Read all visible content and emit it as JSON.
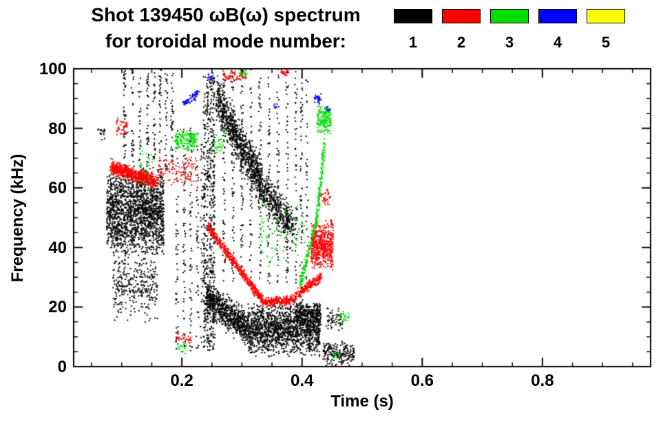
{
  "title": {
    "line1": "Shot 139450 ωB(ω) spectrum",
    "line2": "for toroidal mode number:"
  },
  "legend": {
    "modes": [
      {
        "label": "1",
        "color": "#000000"
      },
      {
        "label": "2",
        "color": "#ff0000"
      },
      {
        "label": "3",
        "color": "#00dd00"
      },
      {
        "label": "4",
        "color": "#0000ff"
      },
      {
        "label": "5",
        "color": "#ffff00"
      }
    ]
  },
  "axes": {
    "xlabel": "Time (s)",
    "ylabel": "Frequency (kHz)",
    "xticks": [
      "0.2",
      "0.4",
      "0.6",
      "0.8"
    ],
    "yticks": [
      "0",
      "20",
      "40",
      "60",
      "80",
      "100"
    ]
  },
  "chart_data": {
    "type": "scatter",
    "subtype": "mode-spectrogram",
    "title": "Shot 139450 ωB(ω) spectrum",
    "subtitle": "for toroidal mode number:",
    "xlabel": "Time (s)",
    "ylabel": "Frequency (kHz)",
    "xlim": [
      0.02,
      0.98
    ],
    "ylim": [
      0,
      100
    ],
    "xticks": [
      0.2,
      0.4,
      0.6,
      0.8
    ],
    "yticks": [
      0,
      20,
      40,
      60,
      80,
      100
    ],
    "x_minor_step": 0.05,
    "y_minor_step": 5,
    "grid": false,
    "legend_position": "top-right",
    "modes": [
      {
        "mode": 1,
        "color": "#000000"
      },
      {
        "mode": 2,
        "color": "#ff0000"
      },
      {
        "mode": 3,
        "color": "#00dd00"
      },
      {
        "mode": 4,
        "color": "#0000ff"
      },
      {
        "mode": 5,
        "color": "#ffff00"
      }
    ],
    "clusters": [
      {
        "mode": 1,
        "kind": "blob",
        "t": [
          0.075,
          0.17
        ],
        "f": [
          36,
          68
        ],
        "n": 1800
      },
      {
        "mode": 1,
        "kind": "blob",
        "t": [
          0.085,
          0.16
        ],
        "f": [
          14,
          40
        ],
        "n": 320
      },
      {
        "mode": 1,
        "kind": "blob",
        "t": [
          0.06,
          0.072
        ],
        "f": [
          76,
          82
        ],
        "n": 18
      },
      {
        "mode": 1,
        "kind": "streaks",
        "tpos": [
          0.105,
          0.118,
          0.13,
          0.143,
          0.154,
          0.164,
          0.174,
          0.184
        ],
        "f": [
          66,
          100
        ],
        "n": 280
      },
      {
        "mode": 1,
        "kind": "streaks",
        "tpos": [
          0.192,
          0.204,
          0.215,
          0.226,
          0.233
        ],
        "f": [
          5,
          80
        ],
        "n": 240
      },
      {
        "mode": 1,
        "kind": "streaks",
        "tpos": [
          0.238,
          0.243,
          0.248,
          0.253
        ],
        "f": [
          5,
          98
        ],
        "n": 620
      },
      {
        "mode": 1,
        "kind": "track",
        "t": [
          0.258,
          0.335
        ],
        "f": [
          90,
          60
        ],
        "spread": 7,
        "n": 950
      },
      {
        "mode": 1,
        "kind": "track",
        "t": [
          0.335,
          0.385
        ],
        "f": [
          60,
          46
        ],
        "spread": 6,
        "n": 420
      },
      {
        "mode": 1,
        "kind": "streaks",
        "tpos": [
          0.27,
          0.285,
          0.3,
          0.315,
          0.33,
          0.345,
          0.36,
          0.375,
          0.39
        ],
        "f": [
          28,
          100
        ],
        "n": 480
      },
      {
        "mode": 1,
        "kind": "track",
        "t": [
          0.24,
          0.31
        ],
        "f": [
          23,
          13
        ],
        "spread": 5,
        "n": 750
      },
      {
        "mode": 1,
        "kind": "blob",
        "t": [
          0.31,
          0.43
        ],
        "f": [
          3,
          22
        ],
        "n": 1500
      },
      {
        "mode": 1,
        "kind": "blob",
        "t": [
          0.39,
          0.432
        ],
        "f": [
          13,
          22
        ],
        "n": 260
      },
      {
        "mode": 1,
        "kind": "streaks",
        "tpos": [
          0.399,
          0.408
        ],
        "f": [
          10,
          100
        ],
        "n": 110
      },
      {
        "mode": 1,
        "kind": "blob",
        "t": [
          0.435,
          0.487
        ],
        "f": [
          0,
          9
        ],
        "n": 200
      },
      {
        "mode": 1,
        "kind": "blob",
        "t": [
          0.44,
          0.468
        ],
        "f": [
          12,
          20
        ],
        "n": 60
      },
      {
        "mode": 2,
        "kind": "track",
        "t": [
          0.082,
          0.158
        ],
        "f": [
          67,
          62
        ],
        "spread": 2.2,
        "n": 620
      },
      {
        "mode": 2,
        "kind": "blob",
        "t": [
          0.16,
          0.226
        ],
        "f": [
          60,
          71
        ],
        "n": 110
      },
      {
        "mode": 2,
        "kind": "blob",
        "t": [
          0.09,
          0.112
        ],
        "f": [
          77,
          84
        ],
        "n": 40
      },
      {
        "mode": 2,
        "kind": "track",
        "t": [
          0.243,
          0.335
        ],
        "f": [
          47,
          22
        ],
        "spread": 1.6,
        "n": 500
      },
      {
        "mode": 2,
        "kind": "track",
        "t": [
          0.335,
          0.388
        ],
        "f": [
          21.5,
          22.5
        ],
        "spread": 1.4,
        "n": 260
      },
      {
        "mode": 2,
        "kind": "track",
        "t": [
          0.388,
          0.432
        ],
        "f": [
          23.5,
          30
        ],
        "spread": 1.6,
        "n": 210
      },
      {
        "mode": 2,
        "kind": "blob",
        "t": [
          0.415,
          0.452
        ],
        "f": [
          32,
          50
        ],
        "n": 560
      },
      {
        "mode": 2,
        "kind": "blob",
        "t": [
          0.268,
          0.308
        ],
        "f": [
          95,
          100
        ],
        "n": 60
      },
      {
        "mode": 2,
        "kind": "blob",
        "t": [
          0.365,
          0.378
        ],
        "f": [
          97,
          100
        ],
        "n": 22
      },
      {
        "mode": 2,
        "kind": "blob",
        "t": [
          0.43,
          0.447
        ],
        "f": [
          54,
          60
        ],
        "n": 35
      },
      {
        "mode": 2,
        "kind": "blob",
        "t": [
          0.19,
          0.215
        ],
        "f": [
          7,
          12
        ],
        "n": 25
      },
      {
        "mode": 3,
        "kind": "blob",
        "t": [
          0.188,
          0.226
        ],
        "f": [
          72,
          80
        ],
        "n": 150
      },
      {
        "mode": 3,
        "kind": "blob",
        "t": [
          0.252,
          0.272
        ],
        "f": [
          70,
          79
        ],
        "n": 35
      },
      {
        "mode": 3,
        "kind": "track",
        "t": [
          0.398,
          0.425
        ],
        "f": [
          28,
          50
        ],
        "spread": 2,
        "n": 150
      },
      {
        "mode": 3,
        "kind": "track",
        "t": [
          0.425,
          0.438
        ],
        "f": [
          50,
          76
        ],
        "spread": 2,
        "n": 130
      },
      {
        "mode": 3,
        "kind": "blob",
        "t": [
          0.425,
          0.448
        ],
        "f": [
          78,
          88
        ],
        "n": 170
      },
      {
        "mode": 3,
        "kind": "blob",
        "t": [
          0.33,
          0.405
        ],
        "f": [
          33,
          58
        ],
        "n": 80
      },
      {
        "mode": 3,
        "kind": "blob",
        "t": [
          0.295,
          0.308
        ],
        "f": [
          97,
          100
        ],
        "n": 16
      },
      {
        "mode": 3,
        "kind": "blob",
        "t": [
          0.13,
          0.152
        ],
        "f": [
          60,
          76
        ],
        "n": 20
      },
      {
        "mode": 3,
        "kind": "blob",
        "t": [
          0.193,
          0.207
        ],
        "f": [
          4,
          9
        ],
        "n": 18
      },
      {
        "mode": 3,
        "kind": "blob",
        "t": [
          0.46,
          0.478
        ],
        "f": [
          14,
          19
        ],
        "n": 22
      },
      {
        "mode": 3,
        "kind": "blob",
        "t": [
          0.45,
          0.463
        ],
        "f": [
          2,
          7
        ],
        "n": 12
      },
      {
        "mode": 4,
        "kind": "track",
        "t": [
          0.2,
          0.228
        ],
        "f": [
          88,
          92
        ],
        "spread": 1.2,
        "n": 65
      },
      {
        "mode": 4,
        "kind": "blob",
        "t": [
          0.243,
          0.252
        ],
        "f": [
          96,
          100
        ],
        "n": 12
      },
      {
        "mode": 4,
        "kind": "blob",
        "t": [
          0.42,
          0.432
        ],
        "f": [
          88,
          92
        ],
        "n": 28
      },
      {
        "mode": 4,
        "kind": "blob",
        "t": [
          0.437,
          0.447
        ],
        "f": [
          85,
          88
        ],
        "n": 10
      },
      {
        "mode": 4,
        "kind": "blob",
        "t": [
          0.352,
          0.359
        ],
        "f": [
          86,
          89
        ],
        "n": 6
      }
    ]
  }
}
